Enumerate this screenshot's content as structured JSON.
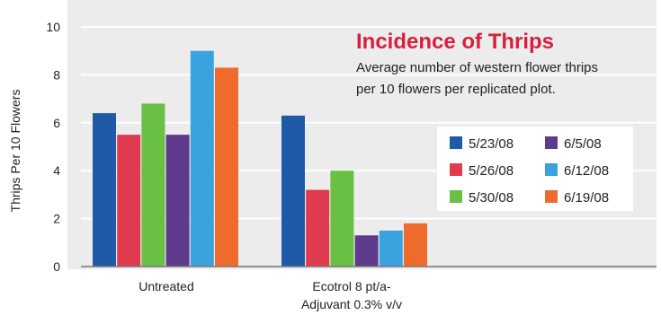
{
  "chart_data": {
    "type": "bar",
    "title": "Incidence of Thrips",
    "subtitle_lines": [
      "Average number of western flower thrips",
      "per 10 flowers per replicated plot."
    ],
    "ylabel": "Thrips Per 10 Flowers",
    "xlabel": "",
    "ylim": [
      0,
      10
    ],
    "yticks": [
      0,
      2,
      4,
      6,
      8,
      10
    ],
    "grid": true,
    "legend_position": "right",
    "categories": [
      [
        "Untreated"
      ],
      [
        "Ecotrol 8 pt/a-",
        "Adjuvant 0.3% v/v"
      ]
    ],
    "series": [
      {
        "name": "5/23/08",
        "color": "#1f5aa6",
        "values": [
          6.4,
          6.3
        ]
      },
      {
        "name": "5/26/08",
        "color": "#e03a4e",
        "values": [
          5.5,
          3.2
        ]
      },
      {
        "name": "5/30/08",
        "color": "#6abf45",
        "values": [
          6.8,
          4.0
        ]
      },
      {
        "name": "6/5/08",
        "color": "#5e3a8c",
        "values": [
          5.5,
          1.3
        ]
      },
      {
        "name": "6/12/08",
        "color": "#3aa2dc",
        "values": [
          9.0,
          1.5
        ]
      },
      {
        "name": "6/19/08",
        "color": "#ee6b2b",
        "values": [
          8.3,
          1.8
        ]
      }
    ],
    "legend_order": [
      0,
      3,
      1,
      4,
      2,
      5
    ],
    "colors": {
      "panel": "#ececec",
      "grid": "#ffffff",
      "title": "#d6213c",
      "baseline": "#777777"
    }
  }
}
